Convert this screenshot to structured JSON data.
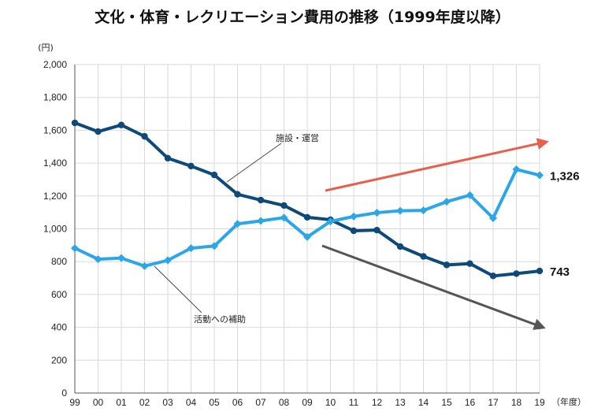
{
  "chart_data": {
    "type": "line",
    "title": "文化・体育・レクリエーション費用の推移（1999年度以降）",
    "y_unit": "(円)",
    "x_unit": "（年度）",
    "ylim": [
      0,
      2000
    ],
    "y_ticks": [
      "0",
      "200",
      "400",
      "600",
      "800",
      "1,000",
      "1,200",
      "1,400",
      "1,600",
      "1,800",
      "2,000"
    ],
    "categories": [
      "99",
      "00",
      "01",
      "02",
      "03",
      "04",
      "05",
      "06",
      "07",
      "08",
      "09",
      "10",
      "11",
      "12",
      "13",
      "14",
      "15",
      "16",
      "17",
      "18",
      "19"
    ],
    "grid": true,
    "series": [
      {
        "name": "施設・運営",
        "color": "#0d4a78",
        "marker": "circle",
        "values": [
          1645,
          1592,
          1632,
          1563,
          1430,
          1382,
          1328,
          1210,
          1175,
          1142,
          1070,
          1055,
          988,
          992,
          892,
          832,
          780,
          788,
          713,
          727,
          743
        ],
        "end_label": "743"
      },
      {
        "name": "活動への補助",
        "color": "#2ba6e8",
        "marker": "diamond",
        "values": [
          882,
          815,
          822,
          773,
          808,
          882,
          895,
          1030,
          1048,
          1068,
          950,
          1045,
          1075,
          1098,
          1110,
          1112,
          1165,
          1205,
          1065,
          1362,
          1326
        ],
        "end_label": "1,326"
      }
    ],
    "annotations": {
      "facilities": "施設・運営",
      "activities": "活動への補助"
    },
    "trend_arrows": [
      {
        "color": "#e8604c",
        "direction": "up"
      },
      {
        "color": "#555555",
        "direction": "down"
      }
    ]
  }
}
